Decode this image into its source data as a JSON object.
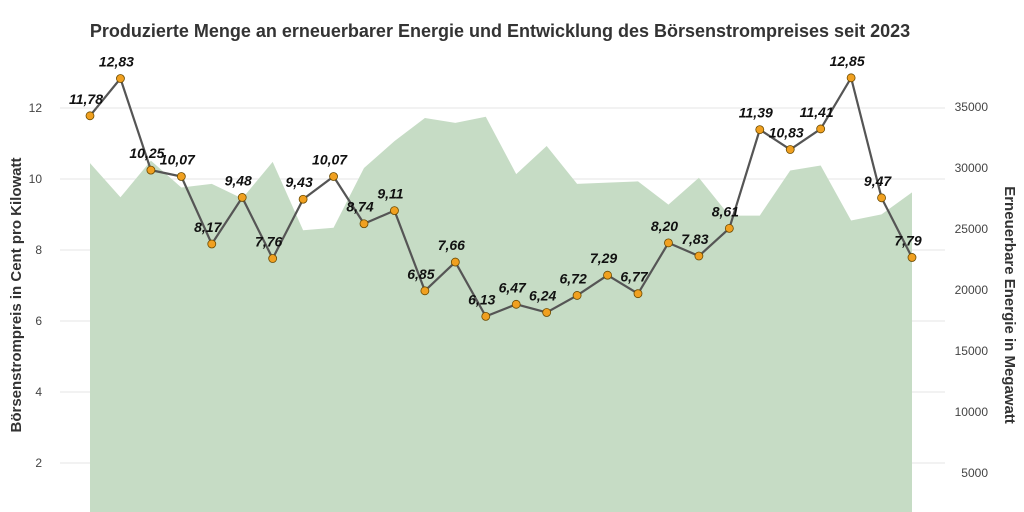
{
  "chart_data": {
    "type": "line",
    "title": "Produzierte Menge an erneuerbarer Energie und Entwicklung des Börsenstrompreises seit 2023",
    "ylabel": "Börsenstrompreis in Cent pro Kilowatt",
    "y2label": "Erneuerbare Energie in Megawatt",
    "ylim": [
      0,
      13.5
    ],
    "y2lim": [
      0,
      38000
    ],
    "yticks": [
      "2",
      "4",
      "6",
      "8",
      "10",
      "12"
    ],
    "y2ticks": [
      "5000",
      "10000",
      "15000",
      "20000",
      "25000",
      "30000",
      "35000"
    ],
    "grid": true,
    "series": [
      {
        "name": "Börsenstrompreis",
        "type": "line",
        "color": "#555555",
        "marker_color": "#f0a020",
        "values": [
          11.78,
          12.83,
          10.25,
          10.07,
          8.17,
          9.48,
          7.76,
          9.43,
          10.07,
          8.74,
          9.11,
          6.85,
          7.66,
          6.13,
          6.47,
          6.24,
          6.72,
          7.29,
          6.77,
          8.2,
          7.83,
          8.61,
          11.39,
          10.83,
          11.41,
          12.85,
          9.47,
          7.79
        ],
        "labels": [
          "11,78",
          "12,83",
          "10,25",
          "10,07",
          "8,17",
          "9,48",
          "7,76",
          "9,43",
          "10,07",
          "8,74",
          "9,11",
          "6,85",
          "7,66",
          "6,13",
          "6,47",
          "6,24",
          "6,72",
          "7,29",
          "6,77",
          "8,20",
          "7,83",
          "8,61",
          "11,39",
          "10,83",
          "11,41",
          "12,85",
          "9,47",
          "7,79"
        ]
      },
      {
        "name": "Erneuerbare Energie",
        "type": "area",
        "color": "#c6dcc5",
        "values": [
          30400,
          27600,
          30600,
          28400,
          28700,
          27500,
          30500,
          24900,
          25100,
          30000,
          32200,
          34100,
          33700,
          34200,
          29500,
          31800,
          28700,
          28800,
          28900,
          27000,
          29200,
          26100,
          26100,
          29800,
          30200,
          25700,
          26200,
          28000
        ]
      }
    ]
  }
}
